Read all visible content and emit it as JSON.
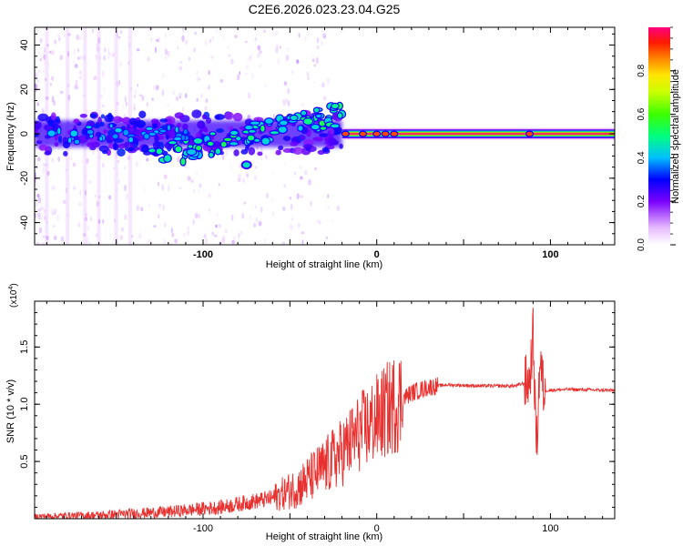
{
  "title": "C2E6.2026.023.23.04.G25",
  "chart_data": [
    {
      "type": "heatmap",
      "xlabel": "Height of straight line (km)",
      "ylabel": "Frequency (Hz)",
      "xlim": [
        -197,
        137
      ],
      "ylim": [
        -50,
        48
      ],
      "xticks": [
        -100,
        0,
        100
      ],
      "xtick_labels": [
        "-100",
        "0",
        "100"
      ],
      "yticks": [
        -40,
        -20,
        0,
        20,
        40
      ],
      "ytick_labels": [
        "-40",
        "-20",
        "0",
        "20",
        "40"
      ],
      "colorbar": {
        "label": "Normalized spectral amplitude",
        "range": [
          0,
          1
        ],
        "ticks": [
          0.0,
          0.2,
          0.4,
          0.6,
          0.8
        ],
        "tick_labels": [
          "0.0",
          "0.2",
          "0.4",
          "0.6",
          "0.8"
        ]
      },
      "features": [
        {
          "name": "noise band",
          "x": [
            -197,
            -20
          ],
          "freq_center": 0,
          "freq_halfwidth": 6,
          "amplitude": 0.25
        },
        {
          "name": "rising tone",
          "x": [
            -130,
            -20
          ],
          "freq_start": -11,
          "freq_end": 9,
          "amplitude": 0.4
        },
        {
          "name": "isolated blob",
          "x": -75,
          "freq": -14,
          "amplitude": 0.35
        },
        {
          "name": "stable carrier",
          "x": [
            -20,
            137
          ],
          "freq": 0,
          "amplitude": 1.0
        }
      ]
    },
    {
      "type": "line",
      "xlabel": "Height of straight line (km)",
      "ylabel": "SNR (10 * v/v)",
      "multiplier_label": "(x10",
      "multiplier_exp": "4",
      "multiplier_close": ")",
      "xlim": [
        -197,
        137
      ],
      "ylim": [
        0,
        1.9
      ],
      "xticks": [
        -100,
        0,
        100
      ],
      "xtick_labels": [
        "-100",
        "0",
        "100"
      ],
      "yticks": [
        0.5,
        1.0,
        1.5
      ],
      "ytick_labels": [
        "0.5",
        "1.0",
        "1.5"
      ],
      "series": [
        {
          "name": "SNR",
          "color": "#e8302f",
          "x": [
            -197,
            -160,
            -120,
            -90,
            -60,
            -45,
            -30,
            -20,
            -10,
            0,
            10,
            20,
            30,
            40,
            60,
            80,
            88,
            90,
            92,
            94,
            96,
            110,
            137
          ],
          "y": [
            0.02,
            0.03,
            0.06,
            0.1,
            0.18,
            0.28,
            0.45,
            0.58,
            0.75,
            0.87,
            1.0,
            1.1,
            1.15,
            1.17,
            1.16,
            1.16,
            1.2,
            1.6,
            0.6,
            1.4,
            1.12,
            1.13,
            1.12
          ]
        }
      ]
    }
  ]
}
